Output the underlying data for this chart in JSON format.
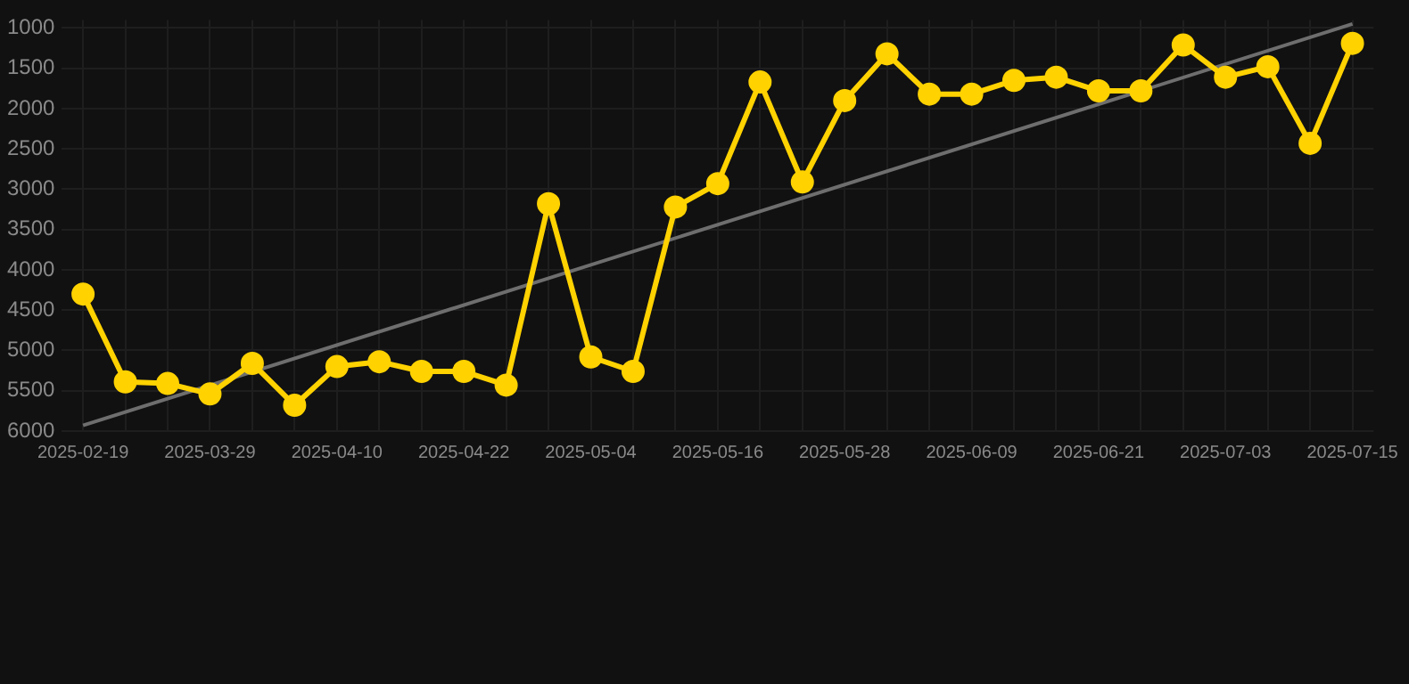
{
  "chart_data": {
    "type": "line",
    "categories": [
      "2025-02-19",
      null,
      null,
      "2025-03-29",
      null,
      null,
      "2025-04-10",
      null,
      null,
      "2025-04-22",
      null,
      null,
      "2025-05-04",
      null,
      null,
      "2025-05-16",
      null,
      null,
      "2025-05-28",
      null,
      null,
      "2025-06-09",
      null,
      null,
      "2025-06-21",
      null,
      null,
      "2025-07-03",
      null,
      null,
      "2025-07-15"
    ],
    "series": [
      {
        "color": "#ffd200",
        "marker": "circle",
        "values": [
          4300,
          5390,
          5410,
          5540,
          5160,
          5680,
          5200,
          5140,
          5260,
          5260,
          5430,
          3180,
          5080,
          5260,
          3220,
          2930,
          1670,
          2910,
          1900,
          1320,
          1820,
          1820,
          1650,
          1610,
          1780,
          1780,
          1210,
          1610,
          1480,
          2430,
          1190
        ]
      },
      {
        "color": "#6e6e6e",
        "marker": "none",
        "values": [
          5930,
          null,
          null,
          null,
          null,
          null,
          null,
          null,
          null,
          null,
          null,
          null,
          null,
          null,
          null,
          null,
          null,
          null,
          null,
          null,
          null,
          null,
          null,
          null,
          null,
          null,
          null,
          null,
          null,
          null,
          950
        ]
      }
    ],
    "ylim": [
      6000,
      900
    ],
    "yticks": [
      1000,
      1500,
      2000,
      2500,
      3000,
      3500,
      4000,
      4500,
      5000,
      5500,
      6000
    ],
    "grid": true,
    "legend": false,
    "line_style": "solid"
  }
}
